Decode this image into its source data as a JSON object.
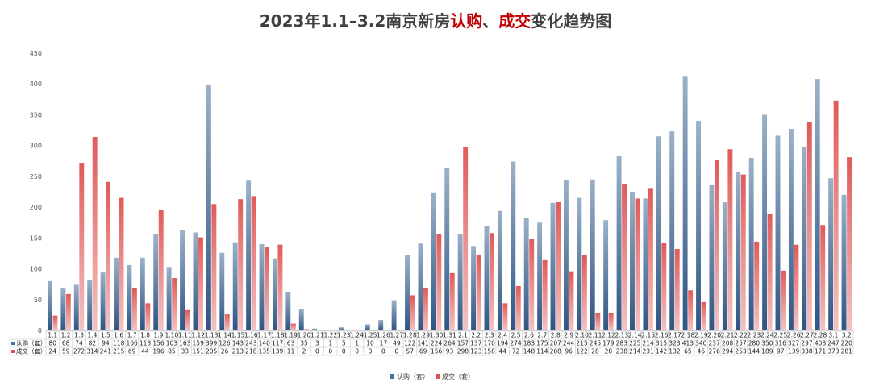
{
  "chart_data": {
    "type": "bar",
    "title_parts": [
      {
        "text": "2023年1.1–3.2南京新房",
        "color": "#404040"
      },
      {
        "text": "认购",
        "color": "#c00000"
      },
      {
        "text": "、",
        "color": "#404040"
      },
      {
        "text": "成交",
        "color": "#c00000"
      },
      {
        "text": "变化趋势图",
        "color": "#404040"
      }
    ],
    "categories": [
      "1.1",
      "1.2",
      "1.3",
      "1.4",
      "1.5",
      "1.6",
      "1.7",
      "1.8",
      "1.9",
      "1.10",
      "1.11",
      "1.12",
      "1.13",
      "1.14",
      "1.15",
      "1.16",
      "1.17",
      "1.18",
      "1.19",
      "1.20",
      "1.21",
      "1.22",
      "1.23",
      "1.24",
      "1.25",
      "1.26",
      "1.27",
      "1.28",
      "1.29",
      "1.30",
      "1.31",
      "2.1",
      "2.2",
      "2.3",
      "2.4",
      "2.5",
      "2.6",
      "2.7",
      "2.8",
      "2.9",
      "2.10",
      "2.11",
      "2.12",
      "2.13",
      "2.14",
      "2.15",
      "2.16",
      "2.17",
      "2.18",
      "2.19",
      "2.20",
      "2.21",
      "2.22",
      "2.23",
      "2.24",
      "2.25",
      "2.26",
      "2.27",
      "2.28",
      "3.1",
      "3.2"
    ],
    "series": [
      {
        "name": "认购（套）",
        "table_label": "认购（套）",
        "color": "#4a6f9c",
        "values": [
          80,
          68,
          74,
          82,
          94,
          118,
          106,
          118,
          156,
          103,
          163,
          159,
          399,
          126,
          143,
          243,
          140,
          117,
          63,
          35,
          3,
          1,
          5,
          1,
          10,
          17,
          49,
          122,
          141,
          224,
          264,
          157,
          137,
          170,
          194,
          274,
          183,
          175,
          207,
          244,
          215,
          245,
          179,
          283,
          225,
          214,
          315,
          323,
          413,
          340,
          237,
          208,
          257,
          280,
          350,
          316,
          327,
          297,
          408,
          247,
          220
        ]
      },
      {
        "name": "成交（套）",
        "table_label": "成交（套）",
        "color": "#d9534f",
        "values": [
          24,
          59,
          272,
          314,
          241,
          215,
          69,
          44,
          196,
          85,
          33,
          151,
          205,
          26,
          213,
          218,
          135,
          139,
          11,
          2,
          0,
          0,
          0,
          0,
          0,
          0,
          0,
          57,
          69,
          156,
          93,
          298,
          123,
          158,
          44,
          72,
          148,
          114,
          208,
          96,
          122,
          28,
          28,
          238,
          214,
          231,
          142,
          132,
          65,
          46,
          276,
          294,
          253,
          144,
          189,
          97,
          139,
          338,
          171,
          373,
          281
        ]
      }
    ],
    "y_ticks": [
      "0",
      "50",
      "100",
      "150",
      "200",
      "250",
      "300",
      "350",
      "400",
      "450"
    ],
    "ylim": [
      0,
      450
    ],
    "grid": false,
    "legend_position": "bottom"
  }
}
